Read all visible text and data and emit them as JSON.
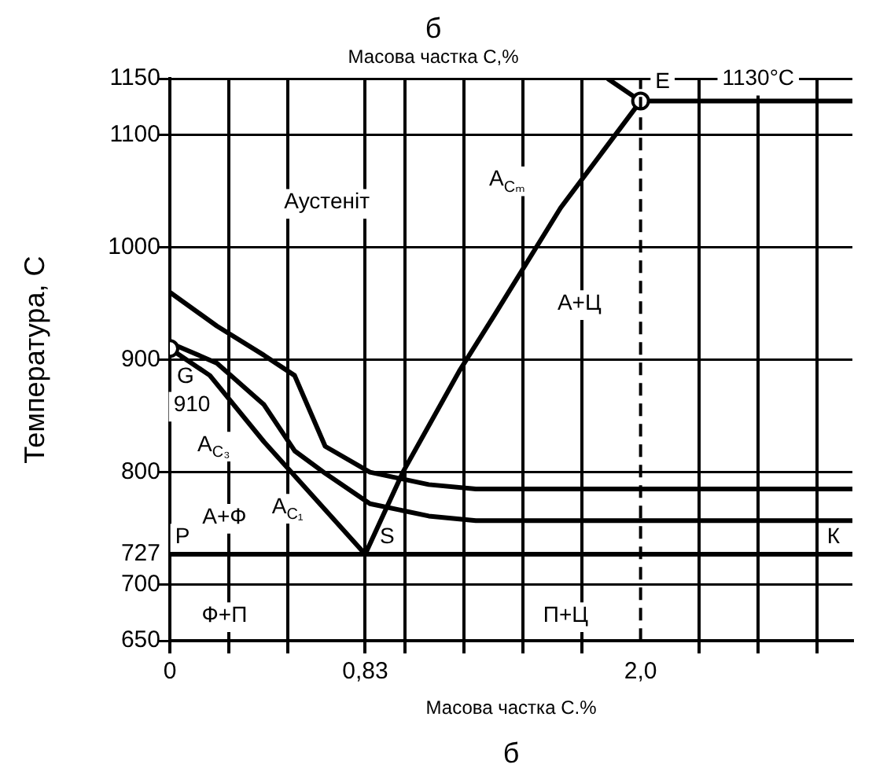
{
  "chart_data": {
    "type": "line",
    "title": "б",
    "subtitle": "Масова частка С,%",
    "xlabel": "Масова частка С.%",
    "ylabel": "Температура, С",
    "xlim": [
      0,
      2.9
    ],
    "xticks": [
      0,
      {
        "value": 0.25,
        "label": null
      },
      {
        "value": 0.5,
        "label": null
      },
      {
        "value": 0.83,
        "label": "0,83"
      },
      {
        "value": 1.0,
        "label": null
      },
      {
        "value": 1.25,
        "label": null
      },
      {
        "value": 1.5,
        "label": null
      },
      {
        "value": 1.75,
        "label": null
      },
      {
        "value": 2.0,
        "label": "2,0"
      },
      {
        "value": 2.25,
        "label": null
      },
      {
        "value": 2.5,
        "label": null
      },
      {
        "value": 2.75,
        "label": null
      }
    ],
    "ylim": [
      650,
      1150
    ],
    "yticks": [
      650,
      700,
      727,
      800,
      900,
      1000,
      1100,
      1150
    ],
    "grid": true,
    "legend": false,
    "marker": "none",
    "line_style": "solid",
    "series": [
      {
        "type": "line",
        "color": "#000000",
        "x": [
          0,
          0.2,
          0.4,
          0.53,
          0.66,
          0.85,
          1.1,
          1.3,
          2.0,
          2.9
        ],
        "values": [
          960,
          930,
          904,
          886,
          823,
          800,
          789,
          785,
          785,
          785
        ]
      },
      {
        "type": "line",
        "color": "#000000",
        "x": [
          0,
          0.2,
          0.4,
          0.53,
          0.66,
          0.85,
          1.1,
          1.3,
          2.0,
          2.9
        ],
        "values": [
          915,
          897,
          860,
          819,
          799,
          772,
          761,
          757,
          757,
          757
        ]
      },
      {
        "type": "line",
        "color": "#000000",
        "x": [
          0,
          0.17,
          0.4,
          0.83
        ],
        "values": [
          910,
          886,
          827,
          727
        ]
      },
      {
        "type": "line",
        "color": "#000000",
        "x": [
          0.83,
          0.99,
          1.23,
          1.38,
          1.66,
          2.0
        ],
        "values": [
          727,
          800,
          890,
          940,
          1035,
          1130
        ]
      },
      {
        "type": "line",
        "color": "#000000",
        "x": [
          1.86,
          2.0,
          2.9
        ],
        "values": [
          1150,
          1130,
          1130
        ]
      },
      {
        "type": "scatter",
        "color": "#000000",
        "marker": "circle",
        "x": [
          0,
          2.0
        ],
        "values": [
          910,
          1130
        ]
      }
    ],
    "ref_lines": [
      {
        "axis": "x",
        "value": 2.0,
        "line_style": "dashed"
      },
      {
        "axis": "y",
        "value": 727,
        "line_style": "solid"
      }
    ],
    "annotations": [
      {
        "text": "A$_{Cₘ}$",
        "x": 1.66,
        "y": 1035
      },
      {
        "text": "A$_{C₃}$",
        "x": 0.4,
        "y": 827
      },
      {
        "text": "A$_{C₁}$",
        "x": 0.5,
        "y": 727
      },
      {
        "text": "G",
        "x": 0,
        "y": 910
      },
      {
        "text": "P",
        "x": 0,
        "y": 727
      },
      {
        "text": "S",
        "x": 0.83,
        "y": 727
      },
      {
        "text": "E",
        "x": 2.0,
        "y": 1130
      },
      {
        "text": "К",
        "x": 2.9,
        "y": 727
      },
      {
        "text": "1130°C",
        "x": 2.5,
        "y": 1130
      },
      {
        "text": "910",
        "x": 0,
        "y": 910
      },
      "Аустеніт",
      "А+Ц",
      "А+Ф",
      "Ф+П",
      "П+Ц",
      "б"
    ]
  }
}
